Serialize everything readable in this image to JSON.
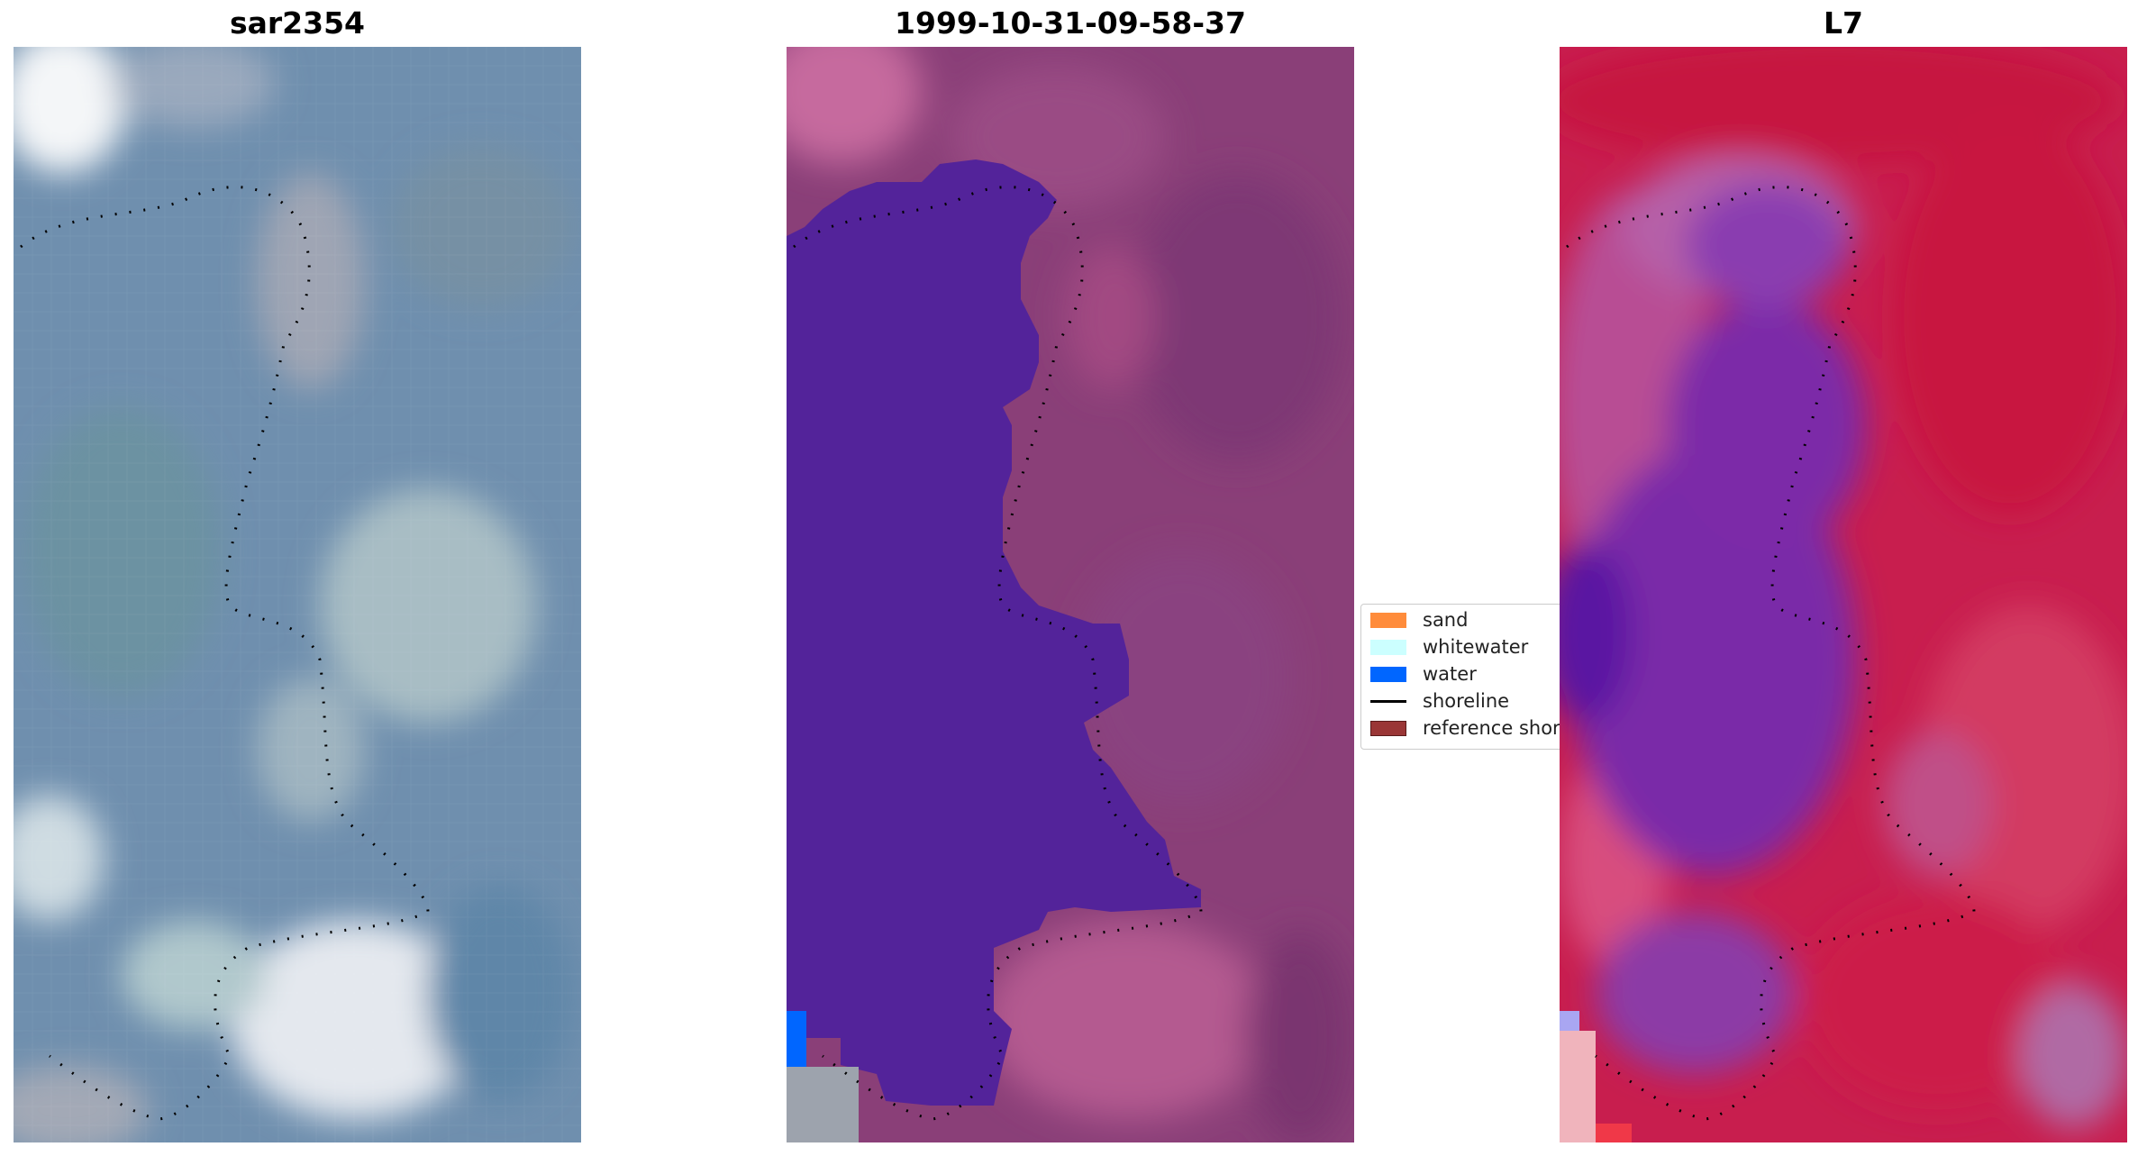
{
  "panels": [
    {
      "title": "sar2354"
    },
    {
      "title": "1999-10-31-09-58-37"
    },
    {
      "title": "L7"
    }
  ],
  "legend": {
    "items": [
      {
        "label": "sand",
        "color": "#ff8c3b"
      },
      {
        "label": "whitewater",
        "color": "#ccffff"
      },
      {
        "label": "water",
        "color": "#0066ff"
      },
      {
        "label": "shoreline",
        "color": "#000000"
      },
      {
        "label": "reference shoreline",
        "color": "#9a3636"
      }
    ]
  },
  "colors": {
    "sar_base": "#6f8fae",
    "classified_base": "#8a3f78",
    "water_class": "#53239a",
    "l7_base": "#c81e4e",
    "l7_water": "#7a2aa8"
  }
}
